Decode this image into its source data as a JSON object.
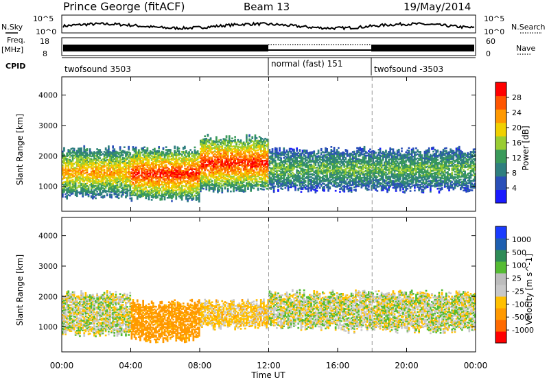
{
  "header": {
    "station": "Prince George (fitACF)",
    "beam": "Beam 13",
    "date": "19/May/2014"
  },
  "noise_panel": {
    "left_label": "N.Sky",
    "right_label": "N.Search",
    "left_ticks": [
      "10^5",
      "10^0"
    ],
    "right_ticks": [
      "10^5",
      "10^0"
    ]
  },
  "freq_panel": {
    "left_label_1": "Freq.",
    "left_label_2": "[MHz]",
    "left_ticks": [
      "18",
      "8"
    ],
    "right_label": "Nave",
    "right_ticks": [
      "60",
      "0"
    ]
  },
  "cpid_panel": {
    "label": "CPID",
    "segments": [
      {
        "text": "twofsound 3503",
        "start_hour": 0
      },
      {
        "text": "normal (fast) 151",
        "start_hour": 12
      },
      {
        "text": "twofsound -3503",
        "start_hour": 18
      }
    ]
  },
  "colors": {
    "power": [
      "#1a1aff",
      "#2a4fb8",
      "#2f7f7f",
      "#3a9a5a",
      "#9acd32",
      "#f0d000",
      "#ff9900",
      "#ff5500",
      "#ff0000"
    ],
    "velocity": [
      "#ff0000",
      "#ff6a00",
      "#ff9900",
      "#ffc000",
      "#c8c8c8",
      "#bcbcbc",
      "#55bb33",
      "#2e8b57",
      "#1e5fb0",
      "#1a3cff"
    ]
  },
  "chart_data": [
    {
      "type": "heatmap",
      "title": "Power",
      "xlabel": "",
      "ylabel": "Slant Range [km]",
      "xlim": [
        0,
        24
      ],
      "ylim": [
        180,
        4600
      ],
      "yticks": [
        "4000",
        "3000",
        "2000",
        "1000"
      ],
      "colorbar": {
        "label": "Power [dB]",
        "ticks": [
          "28",
          "24",
          "20",
          "16",
          "12",
          "8",
          "4"
        ],
        "range": [
          0,
          30
        ]
      },
      "echo_bands": [
        {
          "hour_start": 0,
          "hour_end": 4,
          "range_low": 700,
          "range_high": 2200,
          "typical_db": 20
        },
        {
          "hour_start": 4,
          "hour_end": 8,
          "range_low": 600,
          "range_high": 2200,
          "typical_db": 26
        },
        {
          "hour_start": 8,
          "hour_end": 12,
          "range_low": 900,
          "range_high": 2600,
          "typical_db": 26
        },
        {
          "hour_start": 12,
          "hour_end": 16,
          "range_low": 900,
          "range_high": 2200,
          "typical_db": 12
        },
        {
          "hour_start": 16,
          "hour_end": 24,
          "range_low": 900,
          "range_high": 2200,
          "typical_db": 12
        }
      ]
    },
    {
      "type": "heatmap",
      "title": "Velocity",
      "xlabel": "Time UT",
      "ylabel": "Slant Range [km]",
      "xlim": [
        0,
        24
      ],
      "ylim": [
        180,
        4600
      ],
      "xticks": [
        "00:00",
        "04:00",
        "08:00",
        "12:00",
        "16:00",
        "20:00",
        "00:00"
      ],
      "yticks": [
        "4000",
        "3000",
        "2000",
        "1000"
      ],
      "colorbar": {
        "label": "Velocity [m s^-1]",
        "ticks": [
          "1000",
          "500",
          "100",
          "25",
          "-25",
          "-100",
          "-500",
          "-1000"
        ]
      },
      "echo_bands": [
        {
          "hour_start": 0,
          "hour_end": 4,
          "range_low": 800,
          "range_high": 2100,
          "typical_velocity": 0
        },
        {
          "hour_start": 4,
          "hour_end": 8,
          "range_low": 600,
          "range_high": 1800,
          "typical_velocity": -300
        },
        {
          "hour_start": 8,
          "hour_end": 12,
          "range_low": 1000,
          "range_high": 1800,
          "typical_velocity": -100
        },
        {
          "hour_start": 12,
          "hour_end": 16,
          "range_low": 1000,
          "range_high": 2100,
          "typical_velocity": 0
        },
        {
          "hour_start": 16,
          "hour_end": 24,
          "range_low": 900,
          "range_high": 2100,
          "typical_velocity": 0
        }
      ]
    }
  ]
}
